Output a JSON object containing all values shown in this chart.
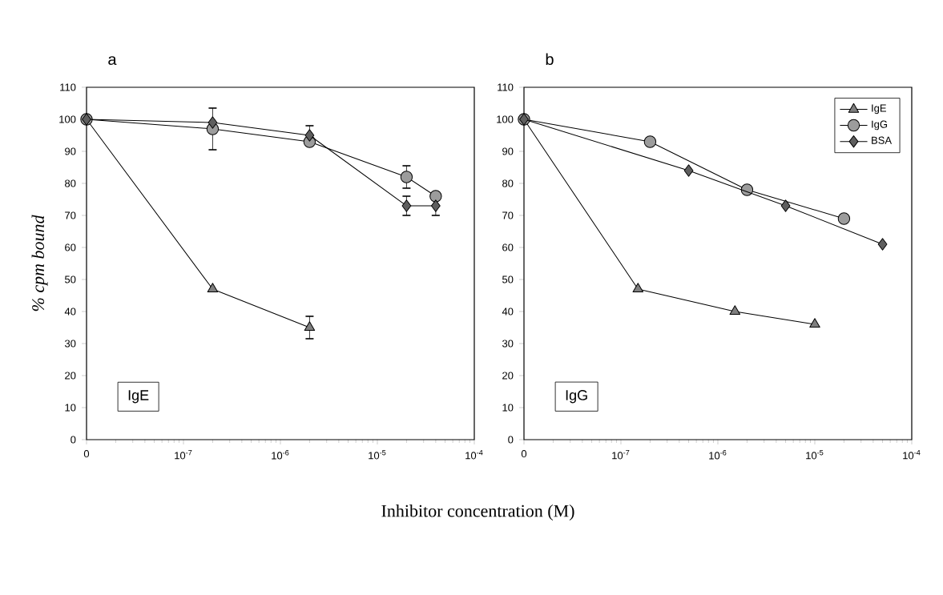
{
  "chart_data": [
    {
      "type": "line",
      "title": "a",
      "ylabel": "% cpm bound",
      "xlabel": "Inhibitor concentration (M)",
      "log": "x",
      "legend": false,
      "xlim": [
        1e-08,
        0.0001
      ],
      "ylim": [
        0,
        110
      ],
      "xticks": [
        {
          "value": 1e-08,
          "label": "0"
        },
        {
          "value": 1e-07,
          "label": "10$^{-7}$"
        },
        {
          "value": 1e-06,
          "label": "10$^{-6}$"
        },
        {
          "value": 1e-05,
          "label": "10$^{-5}$"
        },
        {
          "value": 0.0001,
          "label": "10$^{-4}$"
        }
      ],
      "yticks": [
        0,
        10,
        20,
        30,
        40,
        50,
        60,
        70,
        80,
        90,
        100,
        110
      ],
      "annotations": [
        "IgE"
      ],
      "series": [
        {
          "color": "#7f7f7f",
          "marker": "triangle",
          "x": [
            1e-08,
            2e-07,
            2e-06
          ],
          "values": [
            100,
            47,
            35
          ],
          "errors": [
            null,
            null,
            3.5
          ]
        },
        {
          "color": "#9c9c9c",
          "marker": "circle",
          "x": [
            1e-08,
            2e-07,
            2e-06,
            2e-05,
            4e-05
          ],
          "values": [
            100,
            97,
            93,
            82,
            76
          ],
          "errors": [
            null,
            6.5,
            null,
            3.5,
            null
          ]
        },
        {
          "color": "#5e5e5e",
          "marker": "diamond",
          "x": [
            1e-08,
            2e-07,
            2e-06,
            2e-05,
            4e-05
          ],
          "values": [
            100,
            99,
            95,
            73,
            73
          ],
          "errors": [
            null,
            null,
            3,
            3,
            3
          ]
        }
      ]
    },
    {
      "type": "line",
      "title": "b",
      "log": "x",
      "legend": "top right",
      "xlim": [
        1e-08,
        0.0001
      ],
      "ylim": [
        0,
        110
      ],
      "xticks": [
        {
          "value": 1e-08,
          "label": "0"
        },
        {
          "value": 1e-07,
          "label": "10$^{-7}$"
        },
        {
          "value": 1e-06,
          "label": "10$^{-6}$"
        },
        {
          "value": 1e-05,
          "label": "10$^{-5}$"
        },
        {
          "value": 0.0001,
          "label": "10$^{-4}$"
        }
      ],
      "yticks": [
        0,
        10,
        20,
        30,
        40,
        50,
        60,
        70,
        80,
        90,
        100,
        110
      ],
      "annotations": [
        "IgG"
      ],
      "series": [
        {
          "name": "IgE",
          "color": "#7f7f7f",
          "marker": "triangle",
          "x": [
            1e-08,
            1.5e-07,
            1.5e-06,
            1e-05
          ],
          "values": [
            100,
            47,
            40,
            36
          ]
        },
        {
          "name": "IgG",
          "color": "#9c9c9c",
          "marker": "circle",
          "x": [
            1e-08,
            2e-07,
            2e-06,
            2e-05
          ],
          "values": [
            100,
            93,
            78,
            69
          ]
        },
        {
          "name": "BSA",
          "color": "#5e5e5e",
          "marker": "diamond",
          "x": [
            1e-08,
            5e-07,
            5e-06,
            5e-05
          ],
          "values": [
            100,
            84,
            73,
            61
          ]
        }
      ]
    }
  ]
}
